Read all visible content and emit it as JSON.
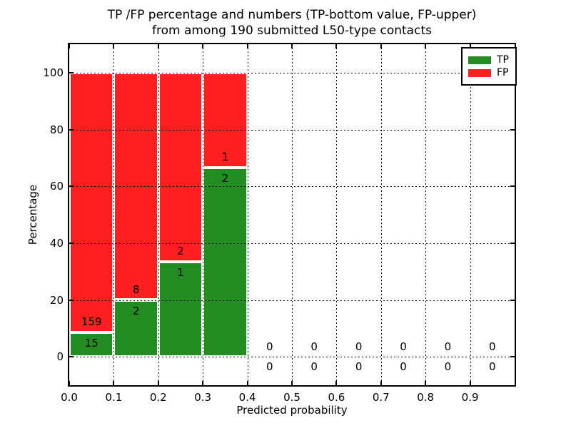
{
  "title": {
    "line1": "TP /FP percentage and numbers (TP-bottom value, FP-upper)",
    "line2": "from among 190 submitted L50-type contacts"
  },
  "chart_data": {
    "type": "bar",
    "stacked": true,
    "title": "TP /FP percentage and numbers (TP-bottom value, FP-upper) from among 190 submitted L50-type contacts",
    "xlabel": "Predicted probability",
    "ylabel": "Percentage",
    "xlim": [
      0.0,
      1.0
    ],
    "ylim": [
      -10,
      110
    ],
    "grid": true,
    "total_contacts": 190,
    "colors": {
      "tp": "#228b22",
      "fp": "#ff1f1f",
      "text": "#000000",
      "background": "#ffffff"
    },
    "legend": [
      {
        "label": "TP",
        "color": "#228b22"
      },
      {
        "label": "FP",
        "color": "#ff1f1f"
      }
    ],
    "legend_position": "upper right",
    "x_tick_values": [
      0.0,
      0.1,
      0.2,
      0.3,
      0.4,
      0.5,
      0.6,
      0.7,
      0.8,
      0.9
    ],
    "x_tick_labels": [
      "0.0",
      "0.1",
      "0.2",
      "0.3",
      "0.4",
      "0.5",
      "0.6",
      "0.7",
      "0.8",
      "0.9"
    ],
    "y_tick_values": [
      0,
      20,
      40,
      60,
      80,
      100
    ],
    "y_tick_labels": [
      "0",
      "20",
      "40",
      "60",
      "80",
      "100"
    ],
    "bins": [
      {
        "x0": 0.0,
        "x1": 0.1,
        "tp": 15,
        "fp": 159
      },
      {
        "x0": 0.1,
        "x1": 0.2,
        "tp": 2,
        "fp": 8
      },
      {
        "x0": 0.2,
        "x1": 0.3,
        "tp": 1,
        "fp": 2
      },
      {
        "x0": 0.3,
        "x1": 0.4,
        "tp": 2,
        "fp": 1
      },
      {
        "x0": 0.4,
        "x1": 0.5,
        "tp": 0,
        "fp": 0
      },
      {
        "x0": 0.5,
        "x1": 0.6,
        "tp": 0,
        "fp": 0
      },
      {
        "x0": 0.6,
        "x1": 0.7,
        "tp": 0,
        "fp": 0
      },
      {
        "x0": 0.7,
        "x1": 0.8,
        "tp": 0,
        "fp": 0
      },
      {
        "x0": 0.8,
        "x1": 0.9,
        "tp": 0,
        "fp": 0
      },
      {
        "x0": 0.9,
        "x1": 1.0,
        "tp": 0,
        "fp": 0
      }
    ]
  }
}
